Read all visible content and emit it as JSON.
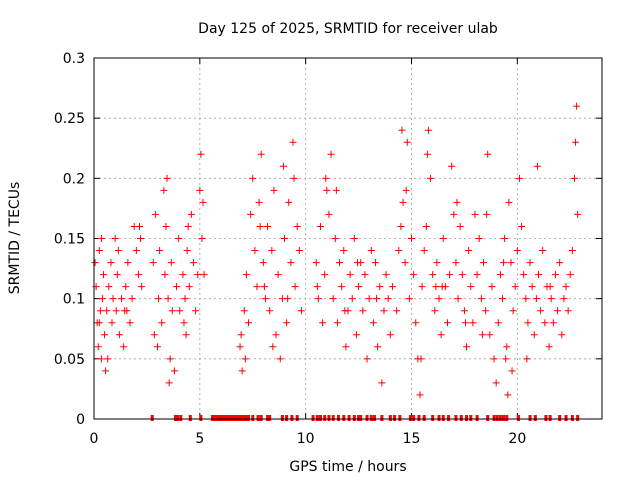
{
  "chart_data": {
    "type": "scatter",
    "title": "Day 125 of 2025, SRMTID for receiver ulab",
    "xlabel": "GPS time / hours",
    "ylabel": "SRMTID / TECUs",
    "xlim": [
      0,
      24
    ],
    "ylim": [
      0,
      0.3
    ],
    "grid": true,
    "xticks": [
      0,
      5,
      10,
      15,
      20
    ],
    "xtick_labels": [
      "0",
      "5",
      "10",
      "15",
      "20"
    ],
    "yticks": [
      0,
      0.05,
      0.1,
      0.15,
      0.2,
      0.25,
      0.3
    ],
    "ytick_labels": [
      "0",
      "0.05",
      "0.1",
      "0.15",
      "0.2",
      "0.25",
      "0.3"
    ],
    "marker": "plus",
    "color": "#ff0000",
    "series": [
      {
        "name": "SRMTID",
        "points": [
          [
            0.05,
            0.13
          ],
          [
            0.1,
            0.11
          ],
          [
            0.15,
            0.08
          ],
          [
            0.2,
            0.06
          ],
          [
            0.25,
            0.14
          ],
          [
            0.3,
            0.09
          ],
          [
            0.35,
            0.05
          ],
          [
            0.4,
            0.1
          ],
          [
            0.45,
            0.12
          ],
          [
            0.5,
            0.07
          ],
          [
            0.55,
            0.04
          ],
          [
            0.6,
            0.09
          ],
          [
            0.7,
            0.11
          ],
          [
            0.8,
            0.13
          ],
          [
            0.85,
            0.08
          ],
          [
            0.9,
            0.1
          ],
          [
            1.0,
            0.15
          ],
          [
            1.05,
            0.09
          ],
          [
            1.1,
            0.12
          ],
          [
            1.2,
            0.07
          ],
          [
            1.3,
            0.1
          ],
          [
            1.4,
            0.06
          ],
          [
            1.5,
            0.11
          ],
          [
            1.55,
            0.09
          ],
          [
            1.6,
            0.13
          ],
          [
            1.7,
            0.08
          ],
          [
            1.8,
            0.1
          ],
          [
            1.9,
            0.16
          ],
          [
            2.0,
            0.14
          ],
          [
            2.1,
            0.12
          ],
          [
            2.2,
            0.15
          ],
          [
            2.25,
            0.11
          ],
          [
            2.8,
            0.13
          ],
          [
            2.9,
            0.17
          ],
          [
            3.0,
            0.06
          ],
          [
            3.05,
            0.1
          ],
          [
            3.1,
            0.14
          ],
          [
            3.2,
            0.08
          ],
          [
            3.3,
            0.19
          ],
          [
            3.35,
            0.12
          ],
          [
            3.4,
            0.16
          ],
          [
            3.5,
            0.1
          ],
          [
            3.6,
            0.05
          ],
          [
            3.65,
            0.13
          ],
          [
            3.7,
            0.09
          ],
          [
            3.8,
            0.04
          ],
          [
            3.9,
            0.11
          ],
          [
            4.0,
            0.15
          ],
          [
            4.05,
            0.09
          ],
          [
            4.2,
            0.12
          ],
          [
            4.3,
            0.1
          ],
          [
            4.35,
            0.07
          ],
          [
            4.4,
            0.14
          ],
          [
            4.5,
            0.11
          ],
          [
            4.6,
            0.17
          ],
          [
            4.7,
            0.13
          ],
          [
            4.8,
            0.09
          ],
          [
            4.9,
            0.12
          ],
          [
            5.0,
            0.19
          ],
          [
            5.05,
            0.22
          ],
          [
            5.1,
            0.15
          ],
          [
            5.2,
            0.12
          ],
          [
            6.9,
            0.06
          ],
          [
            7.0,
            0.04
          ],
          [
            7.1,
            0.09
          ],
          [
            7.2,
            0.12
          ],
          [
            7.3,
            0.08
          ],
          [
            7.4,
            0.17
          ],
          [
            7.5,
            0.2
          ],
          [
            7.6,
            0.14
          ],
          [
            7.7,
            0.11
          ],
          [
            7.8,
            0.18
          ],
          [
            7.9,
            0.22
          ],
          [
            8.0,
            0.13
          ],
          [
            8.1,
            0.1
          ],
          [
            8.2,
            0.16
          ],
          [
            8.3,
            0.09
          ],
          [
            8.4,
            0.14
          ],
          [
            8.5,
            0.19
          ],
          [
            8.6,
            0.07
          ],
          [
            8.7,
            0.12
          ],
          [
            8.8,
            0.05
          ],
          [
            8.9,
            0.1
          ],
          [
            9.0,
            0.15
          ],
          [
            9.1,
            0.08
          ],
          [
            9.2,
            0.18
          ],
          [
            9.3,
            0.13
          ],
          [
            9.4,
            0.23
          ],
          [
            9.5,
            0.11
          ],
          [
            9.6,
            0.16
          ],
          [
            9.7,
            0.14
          ],
          [
            9.8,
            0.09
          ],
          [
            10.5,
            0.13
          ],
          [
            10.6,
            0.1
          ],
          [
            10.7,
            0.16
          ],
          [
            10.8,
            0.08
          ],
          [
            10.9,
            0.12
          ],
          [
            11.0,
            0.19
          ],
          [
            11.1,
            0.17
          ],
          [
            11.2,
            0.22
          ],
          [
            11.3,
            0.1
          ],
          [
            11.4,
            0.15
          ],
          [
            11.5,
            0.08
          ],
          [
            11.6,
            0.13
          ],
          [
            11.7,
            0.11
          ],
          [
            11.8,
            0.14
          ],
          [
            11.9,
            0.06
          ],
          [
            12.0,
            0.09
          ],
          [
            12.1,
            0.12
          ],
          [
            12.2,
            0.1
          ],
          [
            12.3,
            0.15
          ],
          [
            12.4,
            0.07
          ],
          [
            12.5,
            0.11
          ],
          [
            12.6,
            0.13
          ],
          [
            12.7,
            0.09
          ],
          [
            12.8,
            0.12
          ],
          [
            12.9,
            0.05
          ],
          [
            13.0,
            0.1
          ],
          [
            13.1,
            0.14
          ],
          [
            13.2,
            0.08
          ],
          [
            13.3,
            0.13
          ],
          [
            13.4,
            0.06
          ],
          [
            13.5,
            0.11
          ],
          [
            13.6,
            0.03
          ],
          [
            13.7,
            0.09
          ],
          [
            13.8,
            0.12
          ],
          [
            13.9,
            0.1
          ],
          [
            14.0,
            0.07
          ],
          [
            14.1,
            0.11
          ],
          [
            14.3,
            0.09
          ],
          [
            14.4,
            0.14
          ],
          [
            14.5,
            0.16
          ],
          [
            14.6,
            0.18
          ],
          [
            14.7,
            0.13
          ],
          [
            14.8,
            0.23
          ],
          [
            14.9,
            0.1
          ],
          [
            15.0,
            0.15
          ],
          [
            15.1,
            0.12
          ],
          [
            15.2,
            0.08
          ],
          [
            15.3,
            0.05
          ],
          [
            15.4,
            0.02
          ],
          [
            15.5,
            0.11
          ],
          [
            15.6,
            0.14
          ],
          [
            15.7,
            0.16
          ],
          [
            15.8,
            0.24
          ],
          [
            15.9,
            0.2
          ],
          [
            16.0,
            0.12
          ],
          [
            16.1,
            0.09
          ],
          [
            16.2,
            0.13
          ],
          [
            16.3,
            0.1
          ],
          [
            16.4,
            0.07
          ],
          [
            16.5,
            0.15
          ],
          [
            16.6,
            0.11
          ],
          [
            16.7,
            0.08
          ],
          [
            16.8,
            0.12
          ],
          [
            16.9,
            0.21
          ],
          [
            17.0,
            0.17
          ],
          [
            17.1,
            0.13
          ],
          [
            17.2,
            0.1
          ],
          [
            17.3,
            0.16
          ],
          [
            17.4,
            0.12
          ],
          [
            17.5,
            0.09
          ],
          [
            17.6,
            0.06
          ],
          [
            17.7,
            0.14
          ],
          [
            17.8,
            0.11
          ],
          [
            17.9,
            0.08
          ],
          [
            18.0,
            0.17
          ],
          [
            18.1,
            0.12
          ],
          [
            18.2,
            0.15
          ],
          [
            18.3,
            0.1
          ],
          [
            18.4,
            0.13
          ],
          [
            18.5,
            0.09
          ],
          [
            18.6,
            0.22
          ],
          [
            18.7,
            0.07
          ],
          [
            18.8,
            0.11
          ],
          [
            18.9,
            0.05
          ],
          [
            19.0,
            0.03
          ],
          [
            19.1,
            0.08
          ],
          [
            19.2,
            0.12
          ],
          [
            19.3,
            0.1
          ],
          [
            19.4,
            0.15
          ],
          [
            19.5,
            0.06
          ],
          [
            19.6,
            0.18
          ],
          [
            19.7,
            0.13
          ],
          [
            19.8,
            0.09
          ],
          [
            19.9,
            0.11
          ],
          [
            20.0,
            0.14
          ],
          [
            20.1,
            0.2
          ],
          [
            20.2,
            0.16
          ],
          [
            20.3,
            0.12
          ],
          [
            20.4,
            0.1
          ],
          [
            20.5,
            0.08
          ],
          [
            20.6,
            0.13
          ],
          [
            20.7,
            0.11
          ],
          [
            20.8,
            0.07
          ],
          [
            20.9,
            0.1
          ],
          [
            21.0,
            0.12
          ],
          [
            21.1,
            0.09
          ],
          [
            21.2,
            0.14
          ],
          [
            21.3,
            0.08
          ],
          [
            21.4,
            0.11
          ],
          [
            21.5,
            0.06
          ],
          [
            21.6,
            0.1
          ],
          [
            21.7,
            0.08
          ],
          [
            21.8,
            0.12
          ],
          [
            21.9,
            0.09
          ],
          [
            22.0,
            0.13
          ],
          [
            22.1,
            0.07
          ],
          [
            22.2,
            0.1
          ],
          [
            22.3,
            0.11
          ],
          [
            22.4,
            0.09
          ],
          [
            22.5,
            0.12
          ],
          [
            22.6,
            0.14
          ],
          [
            22.7,
            0.2
          ],
          [
            22.75,
            0.23
          ],
          [
            22.8,
            0.26
          ],
          [
            22.85,
            0.17
          ],
          [
            3.45,
            0.2
          ],
          [
            4.45,
            0.16
          ],
          [
            5.15,
            0.18
          ],
          [
            7.85,
            0.16
          ],
          [
            8.95,
            0.21
          ],
          [
            9.45,
            0.2
          ],
          [
            10.95,
            0.2
          ],
          [
            14.75,
            0.19
          ],
          [
            14.55,
            0.24
          ],
          [
            15.75,
            0.22
          ],
          [
            17.15,
            0.18
          ],
          [
            19.75,
            0.04
          ],
          [
            19.55,
            0.02
          ],
          [
            19.45,
            0.05
          ],
          [
            20.45,
            0.05
          ],
          [
            20.95,
            0.21
          ],
          [
            0.35,
            0.15
          ],
          [
            1.15,
            0.14
          ],
          [
            2.15,
            0.16
          ],
          [
            6.95,
            0.07
          ],
          [
            11.45,
            0.19
          ],
          [
            16.15,
            0.11
          ],
          [
            18.55,
            0.17
          ],
          [
            0.25,
            0.08
          ],
          [
            0.65,
            0.05
          ],
          [
            1.45,
            0.09
          ],
          [
            2.85,
            0.07
          ],
          [
            3.55,
            0.03
          ],
          [
            4.25,
            0.08
          ],
          [
            7.15,
            0.05
          ],
          [
            8.05,
            0.11
          ],
          [
            8.45,
            0.06
          ],
          [
            9.15,
            0.1
          ],
          [
            10.55,
            0.11
          ],
          [
            11.85,
            0.09
          ],
          [
            12.45,
            0.13
          ],
          [
            13.35,
            0.1
          ],
          [
            15.45,
            0.05
          ],
          [
            16.45,
            0.11
          ],
          [
            17.55,
            0.08
          ],
          [
            18.35,
            0.07
          ],
          [
            19.35,
            0.13
          ],
          [
            21.55,
            0.11
          ]
        ]
      }
    ],
    "zero_markers_x": [
      2.75,
      3.85,
      3.95,
      4.1,
      4.55,
      5.05,
      5.6,
      5.7,
      5.8,
      5.9,
      6.0,
      6.1,
      6.2,
      6.3,
      6.4,
      6.5,
      6.6,
      6.7,
      6.8,
      6.9,
      7.0,
      7.1,
      7.2,
      7.3,
      7.5,
      7.75,
      7.9,
      8.2,
      8.3,
      8.9,
      9.1,
      9.35,
      9.6,
      10.35,
      10.55,
      10.7,
      10.9,
      11.1,
      11.3,
      11.55,
      11.8,
      12.05,
      12.3,
      12.5,
      12.6,
      12.9,
      13.1,
      13.25,
      13.6,
      14.0,
      14.2,
      14.45,
      14.95,
      15.1,
      15.35,
      15.6,
      16.0,
      16.3,
      16.5,
      16.75,
      17.1,
      17.35,
      17.6,
      17.8,
      18.1,
      18.6,
      18.9,
      19.05,
      19.2,
      19.35,
      19.5,
      20.05,
      20.6,
      20.85,
      21.35,
      21.55,
      22.0,
      22.3,
      22.6,
      22.85
    ]
  }
}
